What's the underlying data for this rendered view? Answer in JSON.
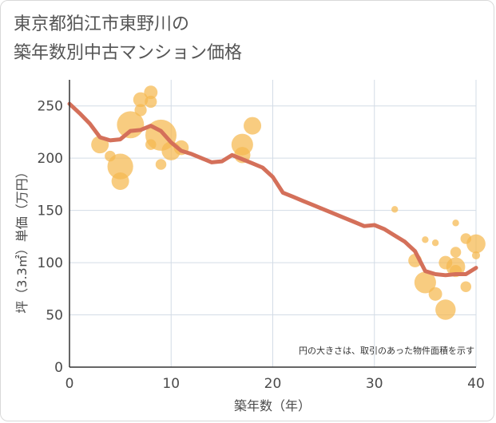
{
  "title_lines": [
    "東京都狛江市東野川の",
    "築年数別中古マンション価格"
  ],
  "note": "円の大きさは、取引のあった物件面積を示す",
  "colors": {
    "line": "#d4705a",
    "bubble": "#f5b94f",
    "grid": "#d3dce6",
    "text": "#4a4a4a"
  },
  "chart_data": {
    "type": "scatter",
    "xlabel": "築年数（年）",
    "ylabel": "坪（3.3㎡）単価（万円）",
    "xlim": [
      0,
      40
    ],
    "ylim": [
      0,
      275
    ],
    "x_ticks": [
      0,
      10,
      20,
      30,
      40
    ],
    "y_ticks": [
      0,
      50,
      100,
      150,
      200,
      250
    ],
    "grid": true,
    "trend_line": {
      "x": [
        0,
        1,
        2,
        3,
        4,
        5,
        6,
        7,
        8,
        9,
        10,
        11,
        12,
        13,
        14,
        15,
        16,
        17,
        18,
        19,
        20,
        21,
        22,
        23,
        24,
        25,
        26,
        27,
        28,
        29,
        30,
        31,
        32,
        33,
        34,
        35,
        36,
        37,
        38,
        39,
        40
      ],
      "y": [
        252,
        243,
        233,
        220,
        217,
        218,
        226,
        227,
        231,
        226,
        215,
        207,
        204,
        200,
        196,
        197,
        203,
        199,
        195,
        191,
        182,
        167,
        163,
        159,
        155,
        151,
        147,
        143,
        139,
        135,
        136,
        132,
        126,
        120,
        111,
        92,
        89,
        88,
        89,
        89,
        95
      ]
    },
    "bubbles": [
      {
        "x": 3,
        "y": 213,
        "size": 10
      },
      {
        "x": 4,
        "y": 202,
        "size": 5
      },
      {
        "x": 5,
        "y": 192,
        "size": 16
      },
      {
        "x": 5,
        "y": 178,
        "size": 10
      },
      {
        "x": 6,
        "y": 232,
        "size": 17
      },
      {
        "x": 7,
        "y": 256,
        "size": 8
      },
      {
        "x": 7,
        "y": 246,
        "size": 6
      },
      {
        "x": 8,
        "y": 263,
        "size": 7
      },
      {
        "x": 8,
        "y": 254,
        "size": 6
      },
      {
        "x": 8,
        "y": 213,
        "size": 5
      },
      {
        "x": 9,
        "y": 222,
        "size": 20
      },
      {
        "x": 9,
        "y": 194,
        "size": 5
      },
      {
        "x": 10,
        "y": 207,
        "size": 11
      },
      {
        "x": 11,
        "y": 210,
        "size": 8
      },
      {
        "x": 17,
        "y": 213,
        "size": 13
      },
      {
        "x": 17,
        "y": 203,
        "size": 9
      },
      {
        "x": 18,
        "y": 231,
        "size": 10
      },
      {
        "x": 32,
        "y": 151,
        "size": 2
      },
      {
        "x": 34,
        "y": 102,
        "size": 7
      },
      {
        "x": 35,
        "y": 122,
        "size": 2
      },
      {
        "x": 35,
        "y": 81,
        "size": 13
      },
      {
        "x": 36,
        "y": 119,
        "size": 2
      },
      {
        "x": 36,
        "y": 70,
        "size": 7
      },
      {
        "x": 37,
        "y": 100,
        "size": 7
      },
      {
        "x": 37,
        "y": 55,
        "size": 12
      },
      {
        "x": 38,
        "y": 138,
        "size": 2
      },
      {
        "x": 38,
        "y": 110,
        "size": 5
      },
      {
        "x": 38,
        "y": 96,
        "size": 11
      },
      {
        "x": 38,
        "y": 92,
        "size": 6
      },
      {
        "x": 39,
        "y": 123,
        "size": 5
      },
      {
        "x": 39,
        "y": 77,
        "size": 5
      },
      {
        "x": 40,
        "y": 118,
        "size": 11
      },
      {
        "x": 40,
        "y": 107,
        "size": 3
      }
    ]
  }
}
